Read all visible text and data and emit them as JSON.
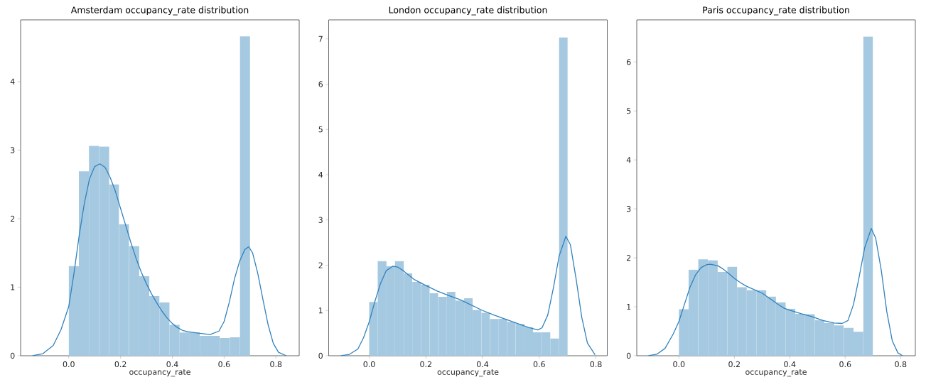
{
  "chart_data": [
    {
      "type": "histogram",
      "title": "Amsterdam occupancy_rate distribution",
      "xlabel": "occupancy_rate",
      "color": "#a5c9e1",
      "bins": [
        0,
        0.039,
        0.078,
        0.117,
        0.156,
        0.194,
        0.233,
        0.272,
        0.311,
        0.35,
        0.389,
        0.428,
        0.467,
        0.506,
        0.544,
        0.583,
        0.622,
        0.661,
        0.7
      ],
      "values": [
        1.31,
        2.69,
        3.06,
        3.05,
        2.5,
        1.92,
        1.6,
        1.16,
        0.87,
        0.78,
        0.45,
        0.34,
        0.34,
        0.29,
        0.29,
        0.26,
        0.27,
        4.66
      ],
      "series": [
        {
          "type": "line",
          "color": "#3182bd",
          "x": [
            -0.14,
            -0.1,
            -0.06,
            -0.03,
            0.0,
            0.02,
            0.04,
            0.06,
            0.08,
            0.1,
            0.12,
            0.14,
            0.16,
            0.18,
            0.2,
            0.22,
            0.24,
            0.26,
            0.28,
            0.3,
            0.32,
            0.34,
            0.36,
            0.38,
            0.4,
            0.42,
            0.44,
            0.46,
            0.5,
            0.546,
            0.58,
            0.6,
            0.62,
            0.64,
            0.66,
            0.68,
            0.695,
            0.71,
            0.73,
            0.75,
            0.77,
            0.79,
            0.81,
            0.84
          ],
          "values": [
            0.0,
            0.03,
            0.15,
            0.38,
            0.72,
            1.2,
            1.75,
            2.22,
            2.58,
            2.76,
            2.8,
            2.75,
            2.6,
            2.4,
            2.15,
            1.9,
            1.65,
            1.42,
            1.22,
            1.05,
            0.9,
            0.77,
            0.65,
            0.55,
            0.47,
            0.41,
            0.37,
            0.35,
            0.33,
            0.31,
            0.36,
            0.5,
            0.78,
            1.12,
            1.38,
            1.55,
            1.59,
            1.5,
            1.2,
            0.82,
            0.45,
            0.18,
            0.05,
            0.0
          ]
        }
      ],
      "xlim": [
        -0.186,
        0.89
      ],
      "ylim": [
        0,
        4.9
      ],
      "xticks": [
        {
          "value": 0,
          "label": "0.0"
        },
        {
          "value": 0.2,
          "label": "0.2"
        },
        {
          "value": 0.4,
          "label": "0.4"
        },
        {
          "value": 0.6,
          "label": "0.6"
        },
        {
          "value": 0.8,
          "label": "0.8"
        }
      ],
      "yticks": [
        0,
        1,
        2,
        3,
        4
      ]
    },
    {
      "type": "histogram",
      "title": "London occupancy_rate distribution",
      "xlabel": "occupancy_rate",
      "color": "#a5c9e1",
      "bins": [
        0,
        0.03,
        0.061,
        0.091,
        0.122,
        0.152,
        0.183,
        0.213,
        0.243,
        0.274,
        0.304,
        0.335,
        0.365,
        0.396,
        0.426,
        0.457,
        0.487,
        0.517,
        0.548,
        0.578,
        0.609,
        0.639,
        0.67,
        0.7
      ],
      "values": [
        1.19,
        2.09,
        1.98,
        2.09,
        1.82,
        1.63,
        1.57,
        1.38,
        1.3,
        1.41,
        1.22,
        1.27,
        1.01,
        0.95,
        0.81,
        0.82,
        0.75,
        0.7,
        0.63,
        0.52,
        0.52,
        0.38,
        7.03
      ],
      "series": [
        {
          "type": "line",
          "color": "#3182bd",
          "x": [
            -0.1,
            -0.07,
            -0.04,
            -0.02,
            0.0,
            0.02,
            0.04,
            0.06,
            0.084,
            0.1,
            0.12,
            0.14,
            0.16,
            0.2,
            0.24,
            0.28,
            0.32,
            0.36,
            0.4,
            0.44,
            0.48,
            0.52,
            0.56,
            0.595,
            0.61,
            0.63,
            0.65,
            0.67,
            0.694,
            0.71,
            0.73,
            0.75,
            0.77,
            0.797
          ],
          "values": [
            0.0,
            0.03,
            0.15,
            0.4,
            0.75,
            1.2,
            1.6,
            1.88,
            1.98,
            1.96,
            1.88,
            1.78,
            1.68,
            1.55,
            1.43,
            1.33,
            1.24,
            1.12,
            1.0,
            0.9,
            0.81,
            0.72,
            0.63,
            0.57,
            0.62,
            0.9,
            1.5,
            2.2,
            2.64,
            2.45,
            1.7,
            0.85,
            0.28,
            0.02
          ]
        }
      ],
      "xlim": [
        -0.143,
        0.84
      ],
      "ylim": [
        0,
        7.42
      ],
      "xticks": [
        {
          "value": 0,
          "label": "0.0"
        },
        {
          "value": 0.2,
          "label": "0.2"
        },
        {
          "value": 0.4,
          "label": "0.4"
        },
        {
          "value": 0.6,
          "label": "0.6"
        },
        {
          "value": 0.8,
          "label": "0.8"
        }
      ],
      "yticks": [
        0,
        1,
        2,
        3,
        4,
        5,
        6,
        7
      ]
    },
    {
      "type": "histogram",
      "title": "Paris occupancy_rate distribution",
      "xlabel": "occupancy_rate",
      "color": "#a5c9e1",
      "bins": [
        0,
        0.035,
        0.07,
        0.105,
        0.14,
        0.175,
        0.21,
        0.245,
        0.28,
        0.315,
        0.35,
        0.385,
        0.42,
        0.455,
        0.49,
        0.525,
        0.56,
        0.595,
        0.63,
        0.665,
        0.7
      ],
      "values": [
        0.95,
        1.76,
        1.97,
        1.95,
        1.71,
        1.82,
        1.4,
        1.34,
        1.34,
        1.21,
        1.09,
        0.96,
        0.86,
        0.85,
        0.73,
        0.67,
        0.62,
        0.57,
        0.49,
        6.52
      ],
      "series": [
        {
          "type": "line",
          "color": "#3182bd",
          "x": [
            -0.11,
            -0.08,
            -0.05,
            -0.02,
            0.0,
            0.02,
            0.04,
            0.06,
            0.08,
            0.1,
            0.113,
            0.14,
            0.16,
            0.18,
            0.2,
            0.22,
            0.24,
            0.26,
            0.28,
            0.3,
            0.32,
            0.34,
            0.36,
            0.38,
            0.4,
            0.44,
            0.48,
            0.52,
            0.56,
            0.589,
            0.61,
            0.63,
            0.65,
            0.67,
            0.694,
            0.71,
            0.73,
            0.75,
            0.77,
            0.79,
            0.807
          ],
          "values": [
            0.0,
            0.03,
            0.15,
            0.45,
            0.7,
            1.05,
            1.4,
            1.65,
            1.8,
            1.86,
            1.87,
            1.84,
            1.77,
            1.68,
            1.58,
            1.5,
            1.43,
            1.38,
            1.33,
            1.28,
            1.2,
            1.12,
            1.04,
            0.97,
            0.93,
            0.86,
            0.8,
            0.72,
            0.67,
            0.66,
            0.72,
            1.05,
            1.6,
            2.2,
            2.6,
            2.4,
            1.75,
            0.9,
            0.3,
            0.06,
            0.0
          ]
        }
      ],
      "xlim": [
        -0.152,
        0.853
      ],
      "ylim": [
        0,
        6.86
      ],
      "xticks": [
        {
          "value": 0,
          "label": "0.0"
        },
        {
          "value": 0.2,
          "label": "0.2"
        },
        {
          "value": 0.4,
          "label": "0.4"
        },
        {
          "value": 0.6,
          "label": "0.6"
        },
        {
          "value": 0.8,
          "label": "0.8"
        }
      ],
      "yticks": [
        0,
        1,
        2,
        3,
        4,
        5,
        6
      ]
    }
  ]
}
